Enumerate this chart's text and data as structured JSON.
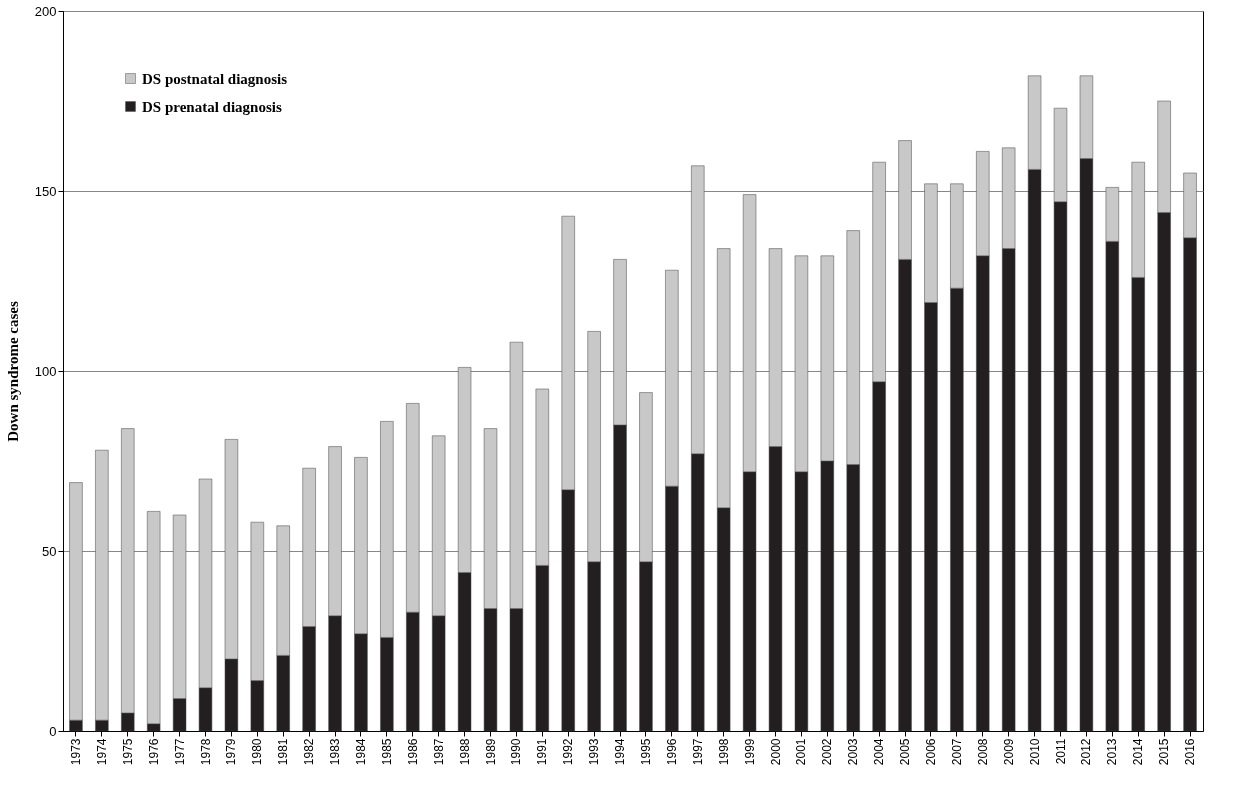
{
  "chart_data": {
    "type": "bar",
    "ylabel": "Down syndrome cases",
    "categories": [
      "1973",
      "1974",
      "1975",
      "1976",
      "1977",
      "1978",
      "1979",
      "1980",
      "1981",
      "1982",
      "1983",
      "1984",
      "1985",
      "1986",
      "1987",
      "1988",
      "1989",
      "1990",
      "1991",
      "1992",
      "1993",
      "1994",
      "1995",
      "1996",
      "1997",
      "1998",
      "1999",
      "2000",
      "2001",
      "2002",
      "2003",
      "2004",
      "2005",
      "2006",
      "2007",
      "2008",
      "2009",
      "2010",
      "2011",
      "2012",
      "2013",
      "2014",
      "2015",
      "2016"
    ],
    "series": [
      {
        "name": "DS prenatal diagnosis",
        "color": "#231f20",
        "values": [
          3,
          3,
          5,
          2,
          9,
          12,
          20,
          14,
          21,
          29,
          32,
          27,
          26,
          33,
          32,
          44,
          34,
          34,
          46,
          67,
          47,
          85,
          47,
          68,
          77,
          62,
          72,
          79,
          72,
          75,
          74,
          97,
          131,
          119,
          123,
          132,
          134,
          156,
          147,
          159,
          136,
          126,
          144,
          137
        ]
      },
      {
        "name": "DS postnatal diagnosis",
        "color": "#c8c8c8",
        "values": [
          66,
          75,
          79,
          59,
          51,
          58,
          61,
          44,
          36,
          44,
          47,
          49,
          60,
          58,
          50,
          57,
          50,
          74,
          49,
          76,
          64,
          46,
          47,
          60,
          80,
          72,
          77,
          55,
          60,
          57,
          65,
          61,
          33,
          33,
          29,
          29,
          28,
          26,
          26,
          23,
          15,
          32,
          31,
          18
        ]
      }
    ],
    "stacked": true,
    "ylim": [
      0,
      200
    ],
    "yticks": [
      0,
      50,
      100,
      150,
      200
    ],
    "grid": "y",
    "legend": "top left"
  }
}
